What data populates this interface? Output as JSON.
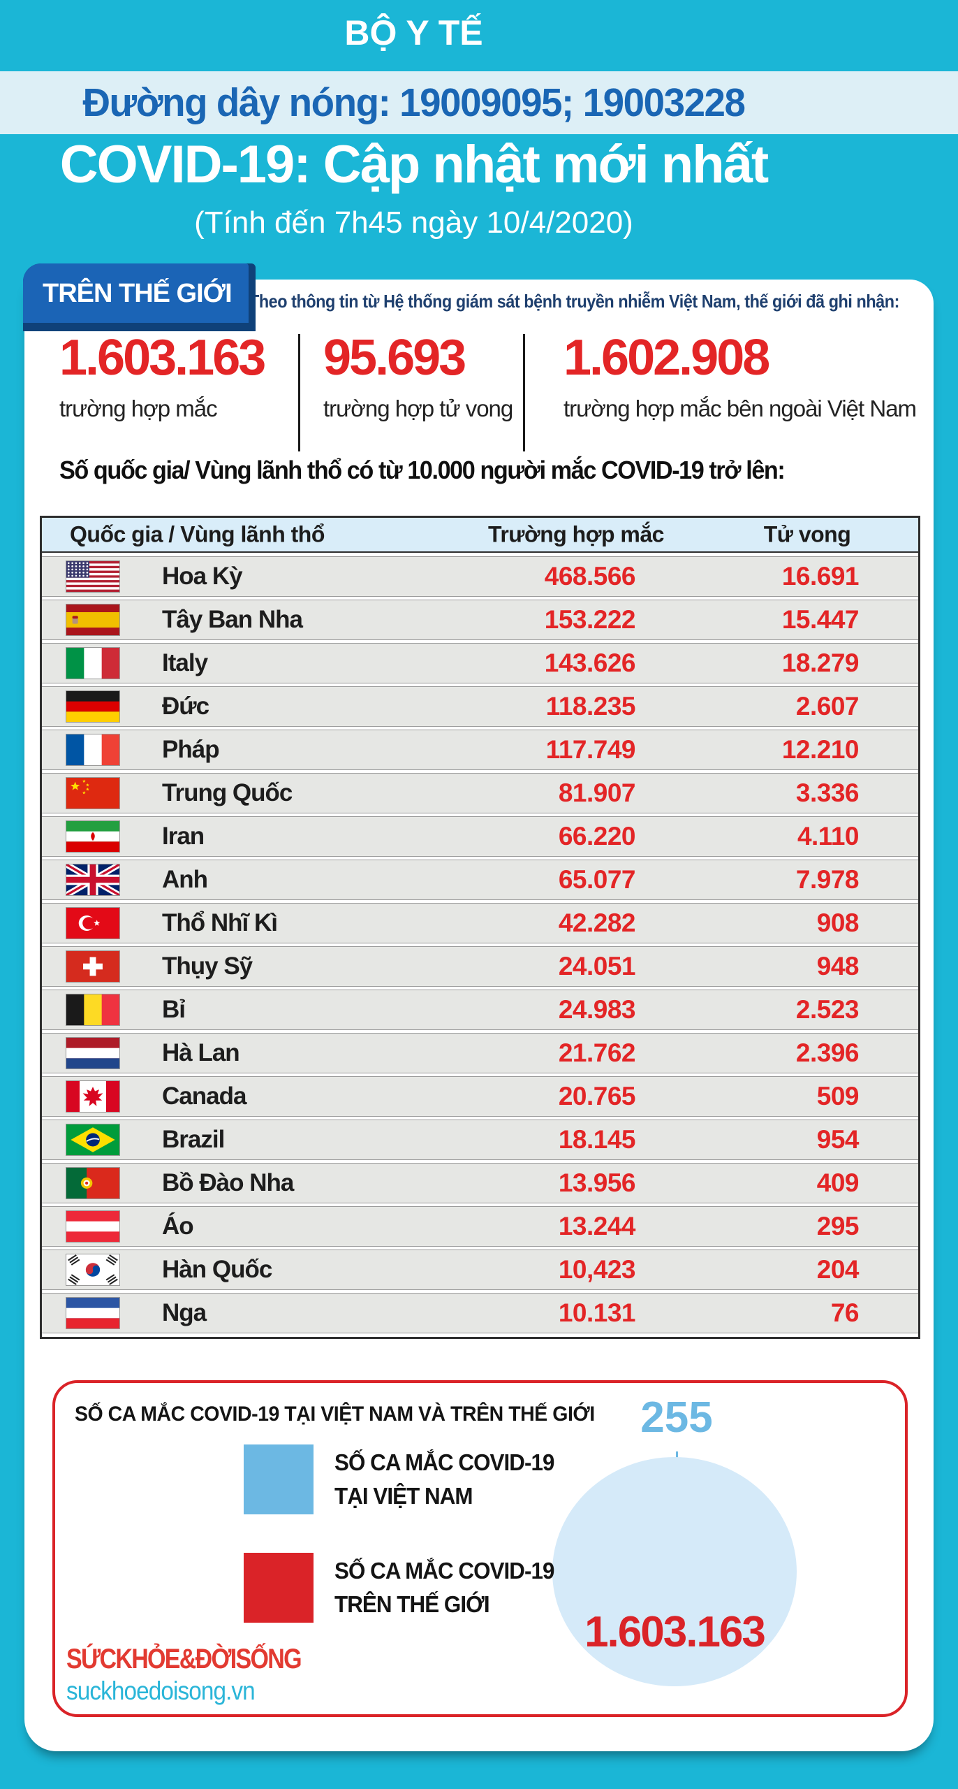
{
  "header": {
    "ministry": "BỘ Y TẾ",
    "hotline": "Đường dây nóng: 19009095; 19003228",
    "title": "COVID-19: Cập nhật mới nhất",
    "subtitle": "(Tính đến 7h45 ngày 10/4/2020)"
  },
  "world": {
    "badge": "TRÊN THẾ GIỚI",
    "source_note": "Theo thông tin từ Hệ thống giám sát bệnh truyền nhiễm Việt Nam, thế giới đã ghi nhận:",
    "stats": [
      {
        "value": "1.603.163",
        "label": "trường hợp mắc"
      },
      {
        "value": "95.693",
        "label": "trường hợp tử vong"
      },
      {
        "value": "1.602.908",
        "label": "trường hợp mắc bên ngoài Việt Nam"
      }
    ]
  },
  "table": {
    "section_title": "Số quốc gia/ Vùng lãnh thổ có từ 10.000 người mắc COVID-19 trở lên:",
    "columns": [
      "Quốc gia / Vùng lãnh thổ",
      "Trường hợp mắc",
      "Tử vong"
    ],
    "rows": [
      {
        "flag": "us",
        "name": "Hoa Kỳ",
        "cases": "468.566",
        "deaths": "16.691"
      },
      {
        "flag": "es",
        "name": "Tây Ban Nha",
        "cases": "153.222",
        "deaths": "15.447"
      },
      {
        "flag": "it",
        "name": "Italy",
        "cases": "143.626",
        "deaths": "18.279"
      },
      {
        "flag": "de",
        "name": "Đức",
        "cases": "118.235",
        "deaths": "2.607"
      },
      {
        "flag": "fr",
        "name": "Pháp",
        "cases": "117.749",
        "deaths": "12.210"
      },
      {
        "flag": "cn",
        "name": "Trung Quốc",
        "cases": "81.907",
        "deaths": "3.336"
      },
      {
        "flag": "ir",
        "name": "Iran",
        "cases": "66.220",
        "deaths": "4.110"
      },
      {
        "flag": "gb",
        "name": "Anh",
        "cases": "65.077",
        "deaths": "7.978"
      },
      {
        "flag": "tr",
        "name": "Thổ Nhĩ Kì",
        "cases": "42.282",
        "deaths": "908"
      },
      {
        "flag": "ch",
        "name": "Thụy Sỹ",
        "cases": "24.051",
        "deaths": "948"
      },
      {
        "flag": "be",
        "name": "Bỉ",
        "cases": "24.983",
        "deaths": "2.523"
      },
      {
        "flag": "nl",
        "name": "Hà Lan",
        "cases": "21.762",
        "deaths": "2.396"
      },
      {
        "flag": "ca",
        "name": "Canada",
        "cases": "20.765",
        "deaths": "509"
      },
      {
        "flag": "br",
        "name": "Brazil",
        "cases": "18.145",
        "deaths": "954"
      },
      {
        "flag": "pt",
        "name": "Bồ Đào Nha",
        "cases": "13.956",
        "deaths": "409"
      },
      {
        "flag": "at",
        "name": "Áo",
        "cases": "13.244",
        "deaths": "295"
      },
      {
        "flag": "kr",
        "name": "Hàn Quốc",
        "cases": "10,423",
        "deaths": "204"
      },
      {
        "flag": "ru",
        "name": "Nga",
        "cases": "10.131",
        "deaths": "76"
      }
    ]
  },
  "comparison": {
    "title": "SỐ CA MẮC COVID-19 TẠI VIỆT NAM VÀ TRÊN THẾ GIỚI",
    "vietnam_value": "255",
    "world_value": "1.603.163",
    "legend": [
      {
        "color": "#6cb8e3",
        "lines": [
          "SỐ CA MẮC COVID-19",
          "TẠI VIỆT NAM"
        ]
      },
      {
        "color": "#da2328",
        "lines": [
          "SỐ CA MẮC COVID-19",
          "TRÊN THẾ GIỚI"
        ]
      }
    ]
  },
  "footer_logo": {
    "brand": "SỨCKHỎE&ĐỜISỐNG",
    "site": "suckhoedoisong.vn"
  },
  "colors": {
    "background_cyan": "#1bb6d6",
    "hotline_band": "#ddeff6",
    "hotline_text_blue": "#1a66b4",
    "badge_blue": "#1b64b6",
    "badge_shadow_navy": "#0f4179",
    "accent_red": "#e32526",
    "table_header_bg": "#d9edf9",
    "table_row_bg": "#e6e7e4",
    "vietnam_light_blue": "#6cb8e3",
    "circle_fill": "#d5eaf9",
    "box_border_red": "#da2328",
    "logo_red": "#e23a31",
    "logo_cyan": "#2ab5d8"
  },
  "chart_data": [
    {
      "type": "table",
      "title": "Số quốc gia/ Vùng lãnh thổ có từ 10.000 người mắc COVID-19 trở lên:",
      "columns": [
        "Quốc gia / Vùng lãnh thổ",
        "Trường hợp mắc",
        "Tử vong"
      ],
      "rows": [
        [
          "Hoa Kỳ",
          468566,
          16691
        ],
        [
          "Tây Ban Nha",
          153222,
          15447
        ],
        [
          "Italy",
          143626,
          18279
        ],
        [
          "Đức",
          118235,
          2607
        ],
        [
          "Pháp",
          117749,
          12210
        ],
        [
          "Trung Quốc",
          81907,
          3336
        ],
        [
          "Iran",
          66220,
          4110
        ],
        [
          "Anh",
          65077,
          7978
        ],
        [
          "Thổ Nhĩ Kì",
          42282,
          908
        ],
        [
          "Thụy Sỹ",
          24051,
          948
        ],
        [
          "Bỉ",
          24983,
          2523
        ],
        [
          "Hà Lan",
          21762,
          2396
        ],
        [
          "Canada",
          20765,
          509
        ],
        [
          "Brazil",
          18145,
          954
        ],
        [
          "Bồ Đào Nha",
          13956,
          409
        ],
        [
          "Áo",
          13244,
          295
        ],
        [
          "Hàn Quốc",
          10423,
          204
        ],
        [
          "Nga",
          10131,
          76
        ]
      ]
    },
    {
      "type": "pie",
      "title": "SỐ CA MẮC COVID-19 TẠI VIỆT NAM VÀ TRÊN THẾ GIỚI",
      "categories": [
        "SỐ CA MẮC COVID-19 TẠI VIỆT NAM",
        "SỐ CA MẮC COVID-19 TRÊN THẾ GIỚI"
      ],
      "values": [
        255,
        1603163
      ],
      "legend_position": "left"
    }
  ]
}
